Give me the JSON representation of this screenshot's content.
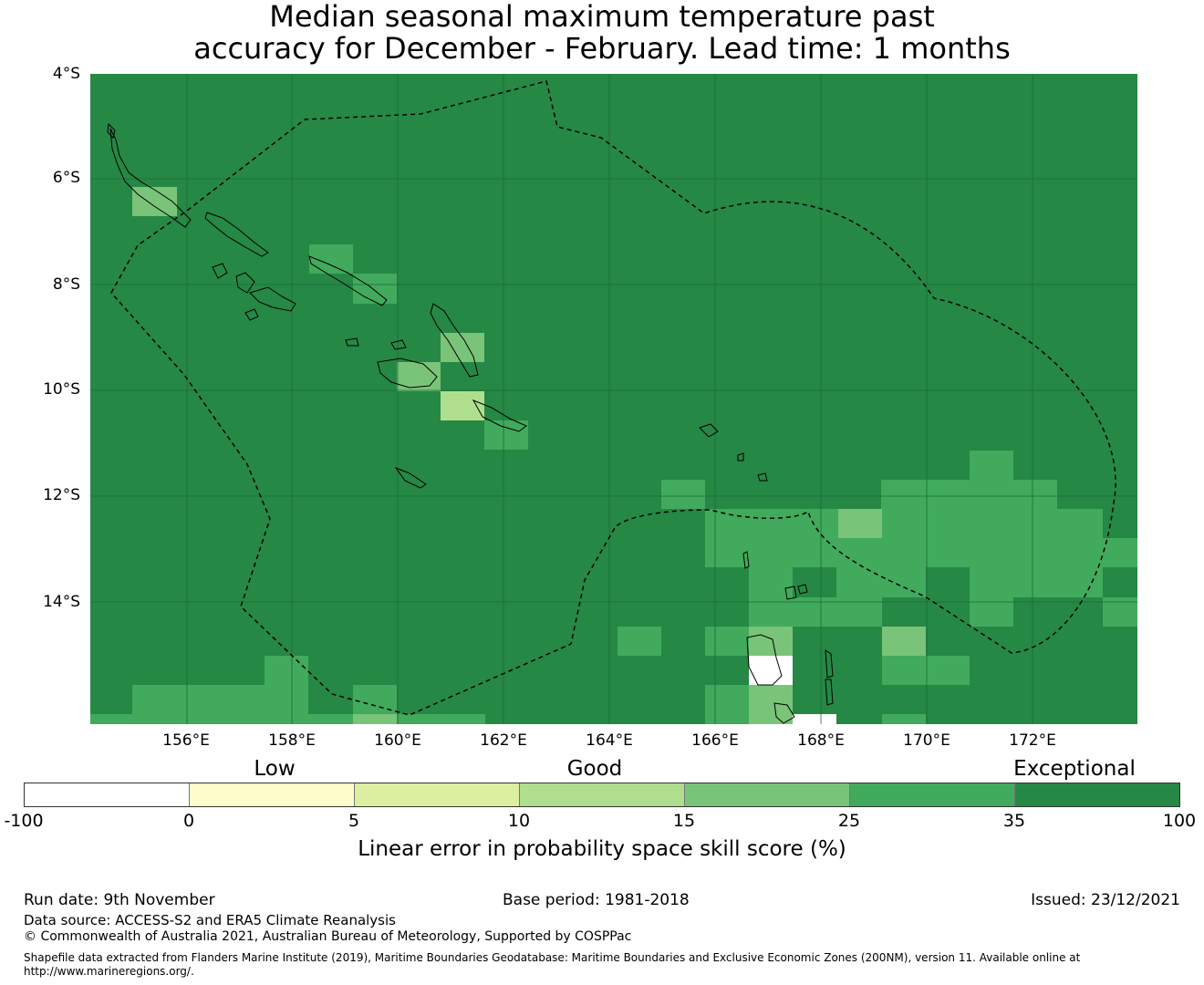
{
  "title": {
    "line1": "Median seasonal maximum temperature past",
    "line2": "accuracy for December - February. Lead time: 1 months"
  },
  "map": {
    "lat_labels": [
      "4°S",
      "6°S",
      "8°S",
      "10°S",
      "12°S",
      "14°S"
    ],
    "lon_labels": [
      "156°E",
      "158°E",
      "160°E",
      "162°E",
      "164°E",
      "166°E",
      "168°E",
      "170°E",
      "172°E"
    ],
    "base_color": "#258845",
    "gridline_color": "#1d6b37",
    "coastline_color": "#000000",
    "eez_boundary_style": "dashed"
  },
  "legend": {
    "categories": [
      "Low",
      "Good",
      "Exceptional"
    ],
    "colors": [
      "#ffffff",
      "#fefdcb",
      "#dceea0",
      "#afdf8e",
      "#79c478",
      "#41aa5c",
      "#258845"
    ],
    "ticks": [
      "-100",
      "0",
      "5",
      "10",
      "15",
      "25",
      "35",
      "100"
    ],
    "label": "Linear error in probability space skill score (%)"
  },
  "footer": {
    "run_date": "Run date: 9th November",
    "base_period": "Base period: 1981-2018",
    "issued": "Issued: 23/12/2021",
    "data_source": "Data source: ACCESS-S2 and ERA5 Climate Reanalysis",
    "copyright": "© Commonwealth of Australia 2021, Australian Bureau of Meteorology, Supported by COSPPac",
    "shapefile_line1": "Shapefile data extracted from Flanders Marine Institute (2019), Maritime Boundaries Geodatabase: Maritime Boundaries and Exclusive Economic Zones (200NM), version 11. Available online at",
    "shapefile_line2": "http://www.marineregions.org/."
  }
}
